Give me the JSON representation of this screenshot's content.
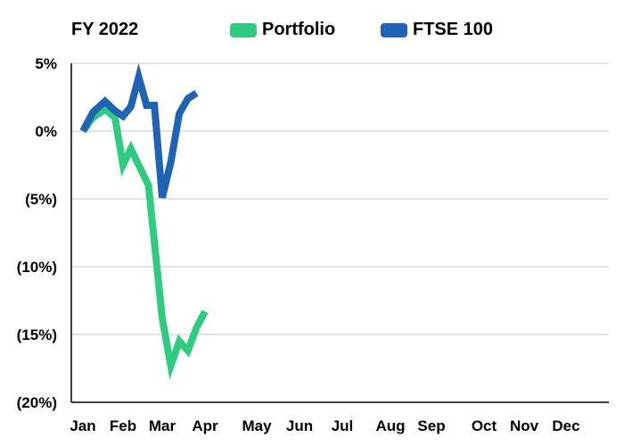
{
  "chart_data": {
    "type": "line",
    "title": "FY 2022",
    "xlabel": "",
    "ylabel": "",
    "categories": [
      "Jan",
      "Feb",
      "Mar",
      "Apr",
      "May",
      "Jun",
      "Jul",
      "Aug",
      "Sep",
      "Oct",
      "Nov",
      "Dec"
    ],
    "yticks": [
      "5%",
      "0%",
      "(5%)",
      "(10%)",
      "(15%)",
      "(20%)"
    ],
    "ytick_values": [
      5,
      0,
      -5,
      -10,
      -15,
      -20
    ],
    "ylim": [
      -20,
      5
    ],
    "grid": true,
    "legend_position": "top",
    "series": [
      {
        "name": "Portfolio",
        "color": "#2ecc80",
        "points": [
          {
            "x": 0.0,
            "y": 0.0
          },
          {
            "x": 0.25,
            "y": 1.0
          },
          {
            "x": 0.55,
            "y": 1.6
          },
          {
            "x": 0.8,
            "y": 1.0
          },
          {
            "x": 1.0,
            "y": -2.5
          },
          {
            "x": 1.2,
            "y": -1.3
          },
          {
            "x": 1.4,
            "y": -2.5
          },
          {
            "x": 1.65,
            "y": -4.0
          },
          {
            "x": 2.0,
            "y": -13.8
          },
          {
            "x": 2.2,
            "y": -17.3
          },
          {
            "x": 2.4,
            "y": -15.5
          },
          {
            "x": 2.6,
            "y": -16.2
          },
          {
            "x": 2.8,
            "y": -14.5
          },
          {
            "x": 3.0,
            "y": -13.3
          }
        ]
      },
      {
        "name": "FTSE 100",
        "color": "#1f63b5",
        "points": [
          {
            "x": 0.0,
            "y": 0.0
          },
          {
            "x": 0.25,
            "y": 1.4
          },
          {
            "x": 0.55,
            "y": 2.2
          },
          {
            "x": 0.8,
            "y": 1.5
          },
          {
            "x": 1.0,
            "y": 1.1
          },
          {
            "x": 1.2,
            "y": 1.8
          },
          {
            "x": 1.4,
            "y": 4.0
          },
          {
            "x": 1.6,
            "y": 1.9
          },
          {
            "x": 1.8,
            "y": 1.9
          },
          {
            "x": 2.0,
            "y": -4.9
          },
          {
            "x": 2.2,
            "y": -2.3
          },
          {
            "x": 2.4,
            "y": 1.3
          },
          {
            "x": 2.6,
            "y": 2.4
          },
          {
            "x": 2.8,
            "y": 2.8
          }
        ]
      }
    ]
  }
}
